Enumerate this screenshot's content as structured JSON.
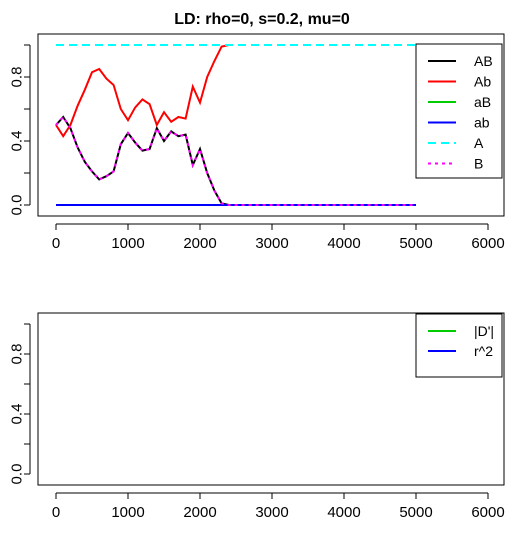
{
  "chart_data": [
    {
      "type": "line",
      "title": "LD: rho=0, s=0.2, mu=0",
      "xlim": [
        0,
        6000
      ],
      "ylim": [
        0,
        1
      ],
      "x_ticks": [
        0,
        1000,
        2000,
        3000,
        4000,
        5000,
        6000
      ],
      "y_ticks": [
        0.0,
        0.4,
        0.8
      ],
      "y_tick_labels": [
        "0.0",
        "0.4",
        "0.8"
      ],
      "legend_position": "top-right",
      "series": [
        {
          "name": "AB",
          "color": "#000000",
          "style": "solid",
          "x": [
            0,
            100,
            200,
            300,
            400,
            500,
            600,
            700,
            800,
            900,
            1000,
            1100,
            1200,
            1300,
            1400,
            1500,
            1600,
            1700,
            1800,
            1900,
            2000,
            2100,
            2200,
            2300,
            2400,
            5000
          ],
          "y": [
            0.5,
            0.55,
            0.48,
            0.36,
            0.27,
            0.21,
            0.16,
            0.18,
            0.21,
            0.38,
            0.45,
            0.39,
            0.34,
            0.35,
            0.48,
            0.4,
            0.46,
            0.43,
            0.44,
            0.25,
            0.35,
            0.2,
            0.09,
            0.01,
            0.0,
            0.0
          ]
        },
        {
          "name": "Ab",
          "color": "#ff0000",
          "style": "solid",
          "x": [
            0,
            100,
            200,
            300,
            400,
            500,
            600,
            700,
            800,
            900,
            1000,
            1100,
            1200,
            1300,
            1400,
            1500,
            1600,
            1700,
            1800,
            1900,
            2000,
            2100,
            2200,
            2300,
            2400
          ],
          "y": [
            0.5,
            0.43,
            0.5,
            0.62,
            0.72,
            0.83,
            0.85,
            0.79,
            0.75,
            0.6,
            0.53,
            0.61,
            0.66,
            0.63,
            0.5,
            0.58,
            0.52,
            0.55,
            0.54,
            0.74,
            0.64,
            0.8,
            0.9,
            0.99,
            1.0
          ]
        },
        {
          "name": "aB",
          "color": "#00cc00",
          "style": "solid",
          "x": [
            0,
            5000
          ],
          "y": [
            0.0,
            0.0
          ]
        },
        {
          "name": "ab",
          "color": "#0000ff",
          "style": "solid",
          "x": [
            0,
            5000
          ],
          "y": [
            0.0,
            0.0
          ]
        },
        {
          "name": "A",
          "color": "#00ffff",
          "style": "dashed",
          "x": [
            0,
            5000
          ],
          "y": [
            1.0,
            1.0
          ]
        },
        {
          "name": "B",
          "color": "#ff00ff",
          "style": "dotted",
          "x": [
            0,
            100,
            200,
            300,
            400,
            500,
            600,
            700,
            800,
            900,
            1000,
            1100,
            1200,
            1300,
            1400,
            1500,
            1600,
            1700,
            1800,
            1900,
            2000,
            2100,
            2200,
            2300,
            2400,
            5000
          ],
          "y": [
            0.5,
            0.55,
            0.48,
            0.36,
            0.27,
            0.21,
            0.16,
            0.18,
            0.21,
            0.38,
            0.45,
            0.39,
            0.34,
            0.35,
            0.48,
            0.4,
            0.46,
            0.43,
            0.44,
            0.25,
            0.35,
            0.2,
            0.09,
            0.01,
            0.0,
            0.0
          ]
        }
      ]
    },
    {
      "type": "line",
      "title": "",
      "xlim": [
        0,
        6000
      ],
      "ylim": [
        0,
        1
      ],
      "x_ticks": [
        0,
        1000,
        2000,
        3000,
        4000,
        5000,
        6000
      ],
      "y_ticks": [
        0.0,
        0.4,
        0.8
      ],
      "y_tick_labels": [
        "0.0",
        "0.4",
        "0.8"
      ],
      "legend_position": "top-right",
      "series": [
        {
          "name": "|D'|",
          "color": "#00cc00",
          "style": "solid",
          "x": [],
          "y": []
        },
        {
          "name": "r^2",
          "color": "#0000ff",
          "style": "solid",
          "x": [],
          "y": []
        }
      ]
    }
  ]
}
